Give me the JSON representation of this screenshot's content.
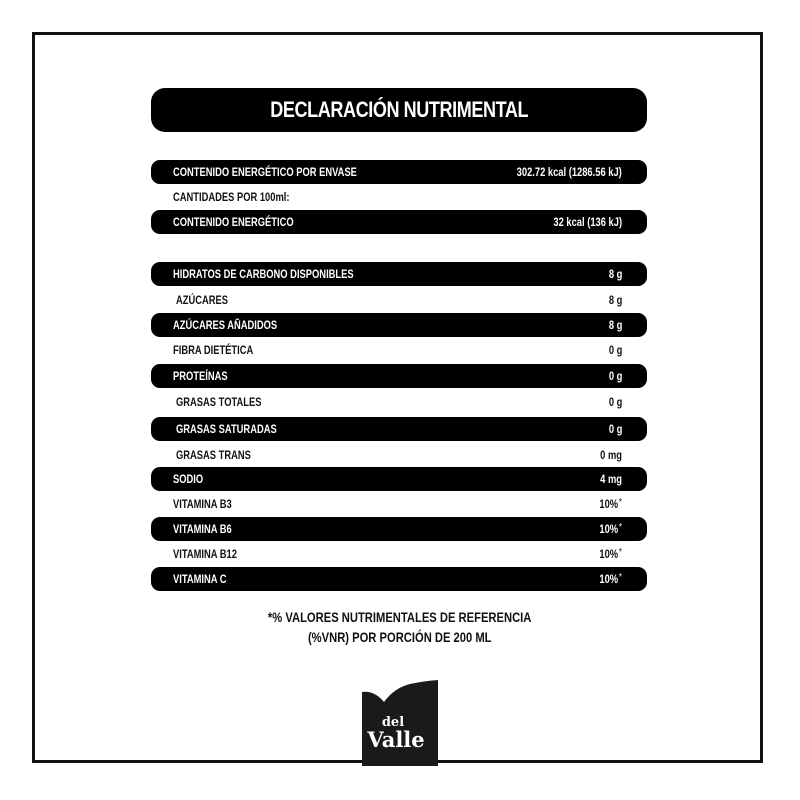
{
  "title": "DECLARACIÓN NUTRIMENTAL",
  "rows": [
    {
      "label": "CONTENIDO ENERGÉTICO POR ENVASE",
      "value": "302.72 kcal (1286.56 kJ)",
      "dark": true,
      "asterisk": ""
    },
    {
      "label": "CANTIDADES POR 100ml:",
      "value": "",
      "dark": false,
      "asterisk": ""
    },
    {
      "label": "CONTENIDO ENERGÉTICO",
      "value": "32 kcal (136 kJ)",
      "dark": true,
      "asterisk": ""
    },
    {
      "label": "HIDRATOS DE CARBONO DISPONIBLES",
      "value": "8 g",
      "dark": true,
      "asterisk": ""
    },
    {
      "label": "AZÚCARES",
      "value": "8 g",
      "dark": false,
      "asterisk": ""
    },
    {
      "label": "AZÚCARES AÑADIDOS",
      "value": "8 g",
      "dark": true,
      "asterisk": ""
    },
    {
      "label": "FIBRA DIETÉTICA",
      "value": "0 g",
      "dark": false,
      "asterisk": ""
    },
    {
      "label": "PROTEÍNAS",
      "value": "0 g",
      "dark": true,
      "asterisk": ""
    },
    {
      "label": "GRASAS TOTALES",
      "value": "0 g",
      "dark": false,
      "asterisk": ""
    },
    {
      "label": "GRASAS SATURADAS",
      "value": "0 g",
      "dark": true,
      "asterisk": ""
    },
    {
      "label": "GRASAS TRANS",
      "value": "0 mg",
      "dark": false,
      "asterisk": ""
    },
    {
      "label": "SODIO",
      "value": "4 mg",
      "dark": true,
      "asterisk": ""
    },
    {
      "label": "VITAMINA B3",
      "value": "10%",
      "dark": false,
      "asterisk": "*"
    },
    {
      "label": "VITAMINA B6",
      "value": "10%",
      "dark": true,
      "asterisk": "*"
    },
    {
      "label": "VITAMINA B12",
      "value": "10%",
      "dark": false,
      "asterisk": "*"
    },
    {
      "label": "VITAMINA C",
      "value": "10%",
      "dark": true,
      "asterisk": "*"
    }
  ],
  "footnote": {
    "line1": "*% VALORES NUTRIMENTALES DE REFERENCIA",
    "line2": "(%VNR)  POR PORCIÓN DE 200 ML"
  },
  "logo": {
    "line1": "del",
    "line2": "Valle"
  },
  "colors": {
    "bar": "#000000",
    "text": "#111111",
    "background": "#ffffff"
  }
}
